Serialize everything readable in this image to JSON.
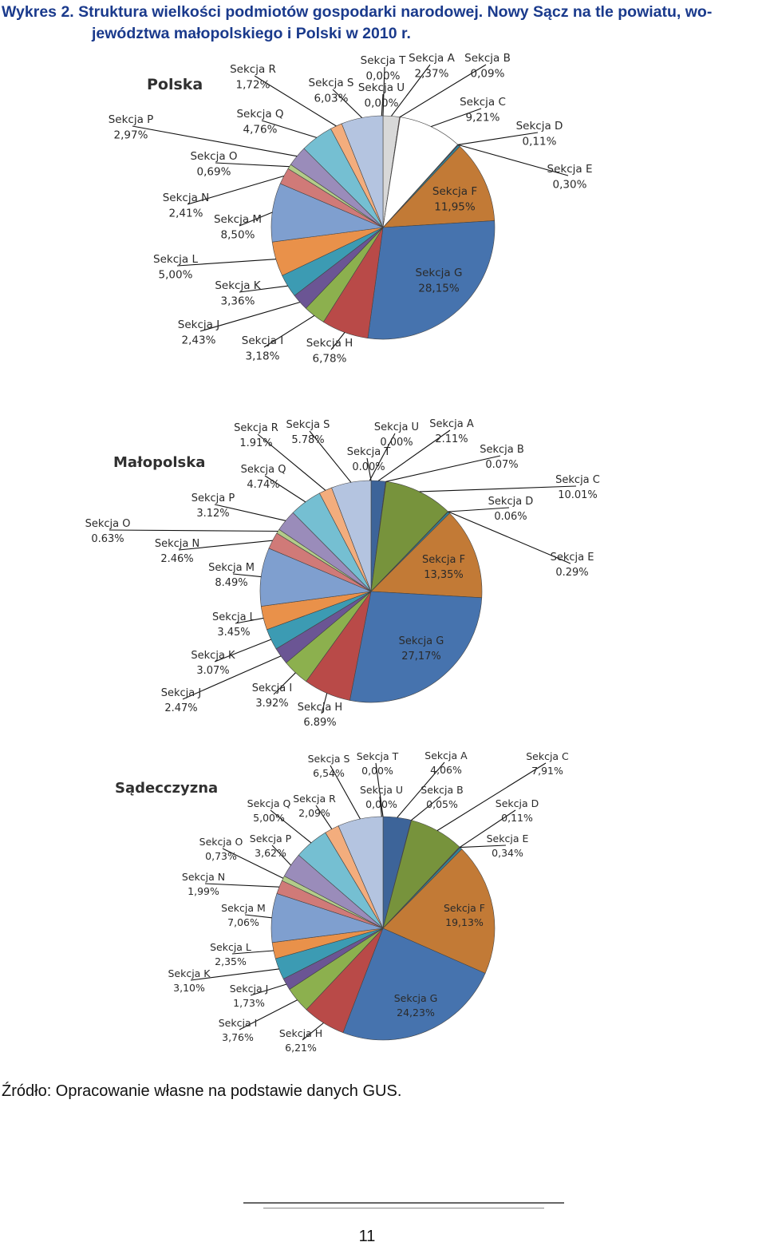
{
  "header": {
    "title_line1": "Wykres 2. Struktura wielkości podmiotów gospodarki narodowej. Nowy Sącz na tle powiatu, wo-",
    "title_line2": "jewództwa małopolskiego i Polski w 2010 r."
  },
  "footer": {
    "source": "Źródło: Opracowanie własne na podstawie danych GUS.",
    "page_number": "11"
  },
  "colors": {
    "A": "#3d6499",
    "B": "#c0504d",
    "C": "#77933c",
    "D": "#604a7b",
    "E": "#31859c",
    "F": "#c27a36",
    "G": "#4673ae",
    "H": "#b94a48",
    "I": "#8cb04e",
    "J": "#6b5594",
    "K": "#3c9bb3",
    "L": "#e9914a",
    "M": "#7f9fcf",
    "N": "#d07a78",
    "O": "#b3cc89",
    "P": "#9a8cba",
    "Q": "#75bfd2",
    "R": "#f3ad7d",
    "S": "#b4c4e0",
    "T": "#d8d8d8",
    "U": "#9c9c9c",
    "polska_A": "#d8d8d8",
    "polska_C": "#ffffff"
  },
  "chart_data": [
    {
      "type": "pie",
      "title": "Polska",
      "slices": [
        {
          "section": "A",
          "label": "Sekcja A",
          "value_text": "2,37%",
          "value": 2.37
        },
        {
          "section": "B",
          "label": "Sekcja B",
          "value_text": "0,09%",
          "value": 0.09
        },
        {
          "section": "C",
          "label": "Sekcja C",
          "value_text": "9,21%",
          "value": 9.21
        },
        {
          "section": "D",
          "label": "Sekcja D",
          "value_text": "0,11%",
          "value": 0.11
        },
        {
          "section": "E",
          "label": "Sekcja E",
          "value_text": "0,30%",
          "value": 0.3
        },
        {
          "section": "F",
          "label": "Sekcja F",
          "value_text": "11,95%",
          "value": 11.95
        },
        {
          "section": "G",
          "label": "Sekcja G",
          "value_text": "28,15%",
          "value": 28.15
        },
        {
          "section": "H",
          "label": "Sekcja H",
          "value_text": "6,78%",
          "value": 6.78
        },
        {
          "section": "I",
          "label": "Sekcja I",
          "value_text": "3,18%",
          "value": 3.18
        },
        {
          "section": "J",
          "label": "Sekcja J",
          "value_text": "2,43%",
          "value": 2.43
        },
        {
          "section": "K",
          "label": "Sekcja K",
          "value_text": "3,36%",
          "value": 3.36
        },
        {
          "section": "L",
          "label": "Sekcja L",
          "value_text": "5,00%",
          "value": 5.0
        },
        {
          "section": "M",
          "label": "Sekcja M",
          "value_text": "8,50%",
          "value": 8.5
        },
        {
          "section": "N",
          "label": "Sekcja N",
          "value_text": "2,41%",
          "value": 2.41
        },
        {
          "section": "O",
          "label": "Sekcja O",
          "value_text": "0,69%",
          "value": 0.69
        },
        {
          "section": "P",
          "label": "Sekcja P",
          "value_text": "2,97%",
          "value": 2.97
        },
        {
          "section": "Q",
          "label": "Sekcja Q",
          "value_text": "4,76%",
          "value": 4.76
        },
        {
          "section": "R",
          "label": "Sekcja R",
          "value_text": "1,72%",
          "value": 1.72
        },
        {
          "section": "S",
          "label": "Sekcja S",
          "value_text": "6,03%",
          "value": 6.03
        },
        {
          "section": "T",
          "label": "Sekcja T",
          "value_text": "0,00%",
          "value": 0.0
        },
        {
          "section": "U",
          "label": "Sekcja U",
          "value_text": "0,00%",
          "value": 0.0
        }
      ]
    },
    {
      "type": "pie",
      "title": "Małopolska",
      "slices": [
        {
          "section": "A",
          "label": "Sekcja A",
          "value_text": "2.11%",
          "value": 2.11
        },
        {
          "section": "B",
          "label": "Sekcja B",
          "value_text": "0.07%",
          "value": 0.07
        },
        {
          "section": "C",
          "label": "Sekcja C",
          "value_text": "10.01%",
          "value": 10.01
        },
        {
          "section": "D",
          "label": "Sekcja D",
          "value_text": "0.06%",
          "value": 0.06
        },
        {
          "section": "E",
          "label": "Sekcja E",
          "value_text": "0.29%",
          "value": 0.29
        },
        {
          "section": "F",
          "label": "Sekcja F",
          "value_text": "13,35%",
          "value": 13.35
        },
        {
          "section": "G",
          "label": "Sekcja G",
          "value_text": "27,17%",
          "value": 27.17
        },
        {
          "section": "H",
          "label": "Sekcja H",
          "value_text": "6.89%",
          "value": 6.89
        },
        {
          "section": "I",
          "label": "Sekcja I",
          "value_text": "3.92%",
          "value": 3.92
        },
        {
          "section": "J",
          "label": "Sekcja J",
          "value_text": "2.47%",
          "value": 2.47
        },
        {
          "section": "K",
          "label": "Sekcja K",
          "value_text": "3.07%",
          "value": 3.07
        },
        {
          "section": "L",
          "label": "Sekcja L",
          "value_text": "3.45%",
          "value": 3.45
        },
        {
          "section": "M",
          "label": "Sekcja M",
          "value_text": "8.49%",
          "value": 8.49
        },
        {
          "section": "N",
          "label": "Sekcja N",
          "value_text": "2.46%",
          "value": 2.46
        },
        {
          "section": "O",
          "label": "Sekcja O",
          "value_text": "0.63%",
          "value": 0.63
        },
        {
          "section": "P",
          "label": "Sekcja P",
          "value_text": "3.12%",
          "value": 3.12
        },
        {
          "section": "Q",
          "label": "Sekcja Q",
          "value_text": "4.74%",
          "value": 4.74
        },
        {
          "section": "R",
          "label": "Sekcja R",
          "value_text": "1.91%",
          "value": 1.91
        },
        {
          "section": "S",
          "label": "Sekcja S",
          "value_text": "5.78%",
          "value": 5.78
        },
        {
          "section": "T",
          "label": "Sekcja T",
          "value_text": "0.00%",
          "value": 0.0
        },
        {
          "section": "U",
          "label": "Sekcja U",
          "value_text": "0.00%",
          "value": 0.0
        }
      ]
    },
    {
      "type": "pie",
      "title": "Sądecczyzna",
      "slices": [
        {
          "section": "A",
          "label": "Sekcja A",
          "value_text": "4,06%",
          "value": 4.06
        },
        {
          "section": "B",
          "label": "Sekcja B",
          "value_text": "0,05%",
          "value": 0.05
        },
        {
          "section": "C",
          "label": "Sekcja C",
          "value_text": "7,91%",
          "value": 7.91
        },
        {
          "section": "D",
          "label": "Sekcja D",
          "value_text": "0,11%",
          "value": 0.11
        },
        {
          "section": "E",
          "label": "Sekcja E",
          "value_text": "0,34%",
          "value": 0.34
        },
        {
          "section": "F",
          "label": "Sekcja F",
          "value_text": "19,13%",
          "value": 19.13
        },
        {
          "section": "G",
          "label": "Sekcja G",
          "value_text": "24,23%",
          "value": 24.23
        },
        {
          "section": "H",
          "label": "Sekcja H",
          "value_text": "6,21%",
          "value": 6.21
        },
        {
          "section": "I",
          "label": "Sekcja I",
          "value_text": "3,76%",
          "value": 3.76
        },
        {
          "section": "J",
          "label": "Sekcja J",
          "value_text": "1,73%",
          "value": 1.73
        },
        {
          "section": "K",
          "label": "Sekcja K",
          "value_text": "3,10%",
          "value": 3.1
        },
        {
          "section": "L",
          "label": "Sekcja L",
          "value_text": "2,35%",
          "value": 2.35
        },
        {
          "section": "M",
          "label": "Sekcja M",
          "value_text": "7,06%",
          "value": 7.06
        },
        {
          "section": "N",
          "label": "Sekcja N",
          "value_text": "1,99%",
          "value": 1.99
        },
        {
          "section": "O",
          "label": "Sekcja O",
          "value_text": "0,73%",
          "value": 0.73
        },
        {
          "section": "P",
          "label": "Sekcja P",
          "value_text": "3,62%",
          "value": 3.62
        },
        {
          "section": "Q",
          "label": "Sekcja Q",
          "value_text": "5,00%",
          "value": 5.0
        },
        {
          "section": "R",
          "label": "Sekcja R",
          "value_text": "2,09%",
          "value": 2.09
        },
        {
          "section": "S",
          "label": "Sekcja S",
          "value_text": "6,54%",
          "value": 6.54
        },
        {
          "section": "T",
          "label": "Sekcja T",
          "value_text": "0,00%",
          "value": 0.0
        },
        {
          "section": "U",
          "label": "Sekcja U",
          "value_text": "0,00%",
          "value": 0.0
        }
      ]
    }
  ]
}
